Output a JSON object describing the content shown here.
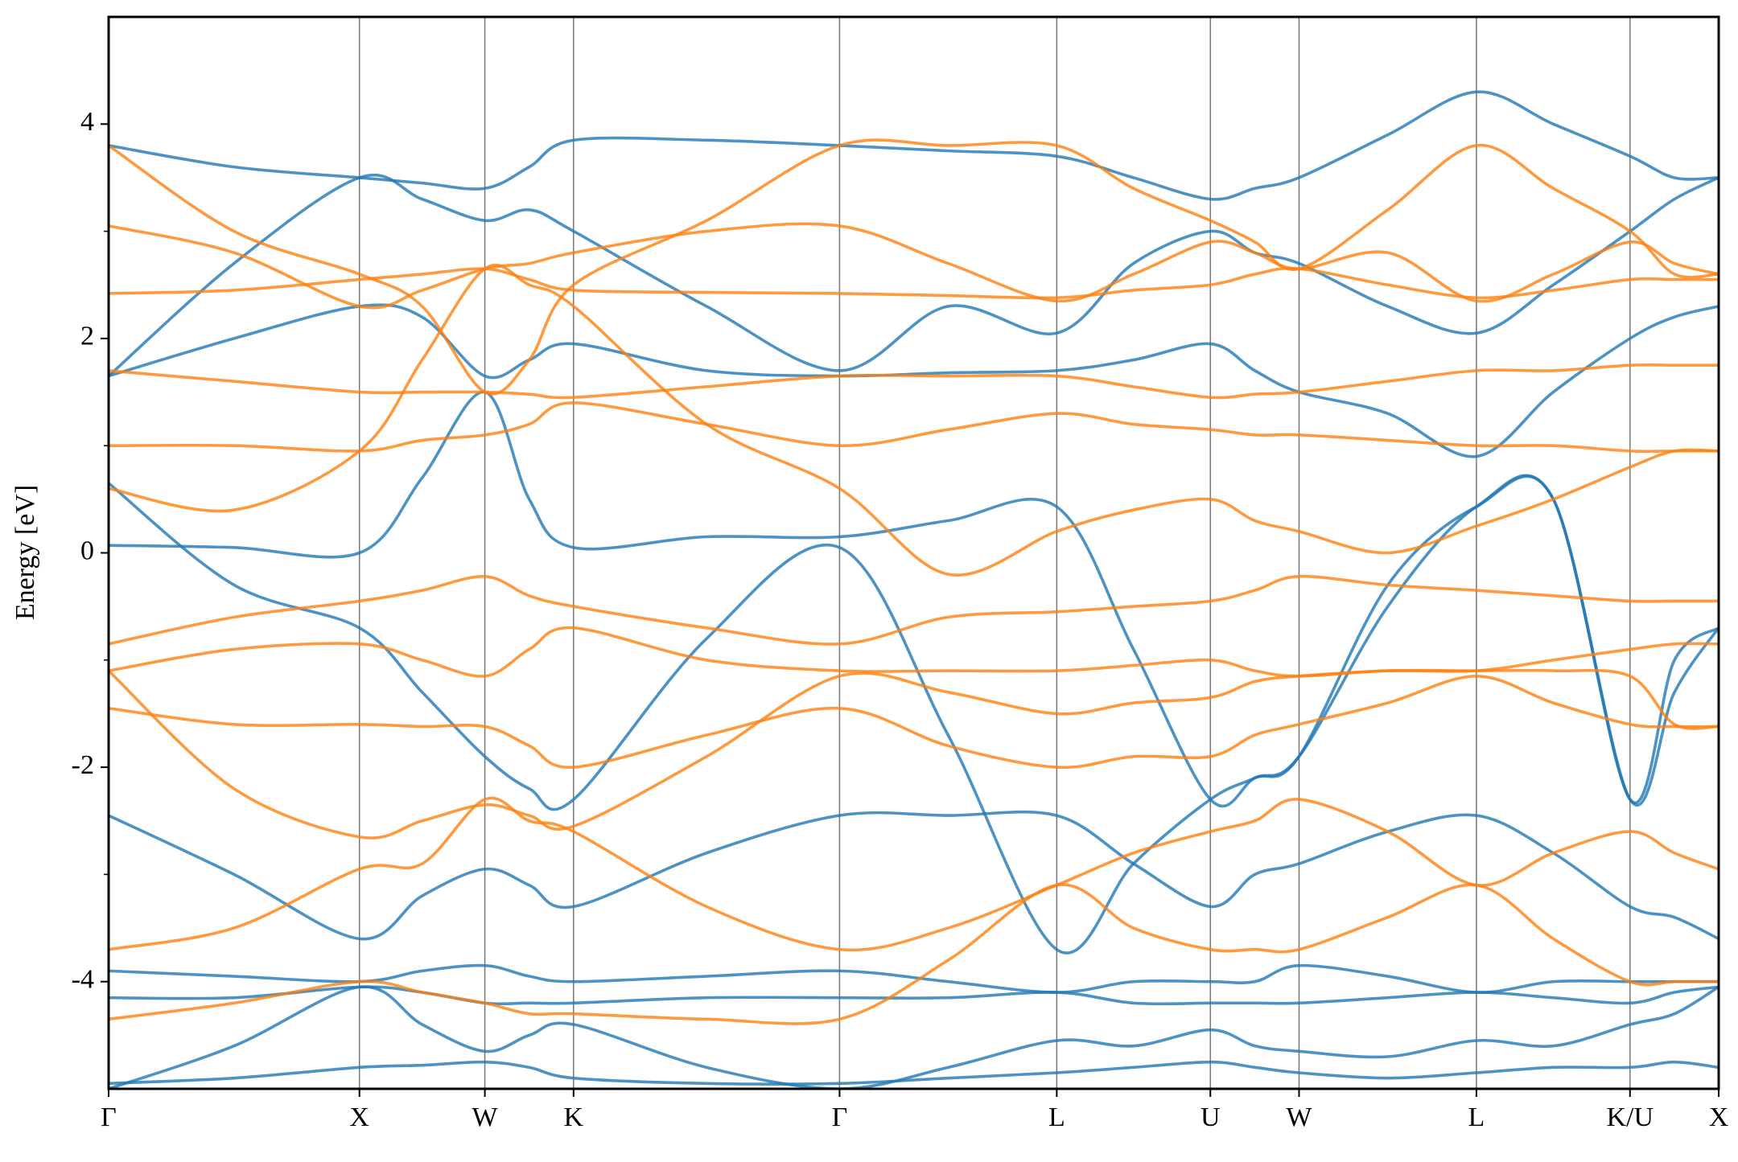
{
  "chart_data": {
    "type": "line",
    "y_label": "Energy [eV]",
    "xlim": [
      0,
      6.4193
    ],
    "ylim": [
      -5,
      5
    ],
    "yticks": [
      -4,
      -2,
      0,
      2,
      4
    ],
    "yminor_ticks": [
      -3,
      -1,
      1,
      3
    ],
    "xticks": [
      {
        "value": 0,
        "label": "Γ"
      },
      {
        "value": 1,
        "label": "X"
      },
      {
        "value": 1.5,
        "label": "W"
      },
      {
        "value": 1.8536,
        "label": "K"
      },
      {
        "value": 2.9142,
        "label": "Γ"
      },
      {
        "value": 3.7802,
        "label": "L"
      },
      {
        "value": 4.3926,
        "label": "U"
      },
      {
        "value": 4.7462,
        "label": "W"
      },
      {
        "value": 5.4533,
        "label": "L"
      },
      {
        "value": 6.0657,
        "label": "K/U"
      },
      {
        "value": 6.4193,
        "label": "X"
      }
    ],
    "vertical_lines": true,
    "x": [
      0,
      0.5,
      1,
      1.25,
      1.5,
      1.677,
      1.854,
      2.384,
      2.914,
      3.347,
      3.78,
      4.086,
      4.393,
      4.57,
      4.746,
      5.1,
      5.453,
      5.76,
      6.066,
      6.243,
      6.419
    ],
    "series": [
      {
        "color": "#1f77b4",
        "values": [
          0.07,
          0.05,
          0.0,
          0.7,
          1.5,
          0.5,
          0.05,
          0.15,
          0.15,
          0.3,
          0.43,
          -0.9,
          -2.3,
          -2.1,
          -1.9,
          -0.3,
          0.43,
          0.5,
          -2.3,
          -1.0,
          -0.7
        ]
      },
      {
        "color": "#1f77b4",
        "values": [
          -2.45,
          -3.0,
          -3.6,
          -3.2,
          -2.95,
          -3.1,
          -3.3,
          -2.8,
          -2.45,
          -2.45,
          -2.45,
          -2.9,
          -3.3,
          -3.0,
          -2.9,
          -2.6,
          -2.45,
          -2.8,
          -3.3,
          -3.4,
          -3.6
        ]
      },
      {
        "color": "#1f77b4",
        "values": [
          -4.15,
          -4.15,
          -4.05,
          -4.1,
          -4.2,
          -4.2,
          -4.2,
          -4.15,
          -4.15,
          -4.15,
          -4.1,
          -4.2,
          -4.2,
          -4.2,
          -4.2,
          -4.15,
          -4.1,
          -4.15,
          -4.2,
          -4.1,
          -4.05
        ]
      },
      {
        "color": "#1f77b4",
        "values": [
          -3.9,
          -3.95,
          -4.0,
          -3.9,
          -3.85,
          -3.95,
          -4.0,
          -3.95,
          -3.9,
          -4.0,
          -4.1,
          -4.0,
          -4.0,
          -4.0,
          -3.85,
          -3.95,
          -4.1,
          -4.0,
          -4.0,
          -4.0,
          -4.0
        ]
      },
      {
        "color": "#1f77b4",
        "values": [
          -5.0,
          -4.6,
          -4.05,
          -4.4,
          -4.65,
          -4.5,
          -4.4,
          -4.8,
          -5.0,
          -4.8,
          -4.55,
          -4.6,
          -4.45,
          -4.6,
          -4.65,
          -4.7,
          -4.55,
          -4.6,
          -4.4,
          -4.3,
          -4.05
        ]
      },
      {
        "color": "#1f77b4",
        "values": [
          1.65,
          2.0,
          2.3,
          2.2,
          1.65,
          1.8,
          1.95,
          1.7,
          1.65,
          1.68,
          1.7,
          1.8,
          1.95,
          1.7,
          1.5,
          1.3,
          0.9,
          1.5,
          2.0,
          2.2,
          2.3
        ]
      },
      {
        "color": "#1f77b4",
        "values": [
          3.8,
          3.6,
          3.5,
          3.45,
          3.4,
          3.6,
          3.85,
          3.85,
          3.8,
          3.75,
          3.7,
          3.5,
          3.3,
          3.4,
          3.5,
          3.9,
          4.3,
          4.0,
          3.7,
          3.5,
          3.5
        ]
      },
      {
        "color": "#1f77b4",
        "values": [
          0.65,
          -0.3,
          -0.7,
          -1.3,
          -1.9,
          -2.2,
          -2.3,
          -0.8,
          0.05,
          -1.7,
          -3.7,
          -2.9,
          -2.3,
          -2.1,
          -1.9,
          -0.5,
          0.43,
          0.5,
          -2.3,
          -1.3,
          -0.7
        ]
      },
      {
        "color": "#1f77b4",
        "values": [
          1.65,
          2.7,
          3.5,
          3.3,
          3.1,
          3.2,
          3.0,
          2.3,
          1.7,
          2.3,
          2.05,
          2.7,
          3.0,
          2.8,
          2.7,
          2.3,
          2.05,
          2.5,
          3.0,
          3.3,
          3.5
        ]
      },
      {
        "color": "#1f77b4",
        "values": [
          -4.95,
          -4.9,
          -4.8,
          -4.78,
          -4.75,
          -4.8,
          -4.9,
          -4.95,
          -4.95,
          -4.9,
          -4.85,
          -4.8,
          -4.75,
          -4.8,
          -4.85,
          -4.9,
          -4.85,
          -4.8,
          -4.8,
          -4.75,
          -4.8
        ]
      },
      {
        "color": "#ff7f0e",
        "values": [
          -1.1,
          -0.9,
          -0.85,
          -1.0,
          -1.15,
          -0.9,
          -0.7,
          -1.0,
          -1.1,
          -1.1,
          -1.1,
          -1.05,
          -1.0,
          -1.1,
          -1.15,
          -1.1,
          -1.1,
          -1.0,
          -0.9,
          -0.85,
          -0.85
        ]
      },
      {
        "color": "#ff7f0e",
        "values": [
          -0.85,
          -0.6,
          -0.45,
          -0.35,
          -0.22,
          -0.4,
          -0.5,
          -0.7,
          -0.85,
          -0.6,
          -0.55,
          -0.5,
          -0.45,
          -0.35,
          -0.22,
          -0.3,
          -0.35,
          -0.4,
          -0.45,
          -0.45,
          -0.45
        ]
      },
      {
        "color": "#ff7f0e",
        "values": [
          -1.45,
          -1.6,
          -1.6,
          -1.62,
          -1.62,
          -1.8,
          -2.0,
          -1.7,
          -1.45,
          -1.8,
          -2.0,
          -1.9,
          -1.9,
          -1.7,
          -1.6,
          -1.4,
          -1.15,
          -1.4,
          -1.6,
          -1.62,
          -1.62
        ]
      },
      {
        "color": "#ff7f0e",
        "values": [
          2.42,
          2.45,
          2.55,
          2.6,
          2.65,
          2.55,
          2.45,
          2.43,
          2.42,
          2.4,
          2.38,
          2.45,
          2.5,
          2.6,
          2.65,
          2.5,
          2.38,
          2.45,
          2.55,
          2.55,
          2.55
        ]
      },
      {
        "color": "#ff7f0e",
        "values": [
          1.0,
          1.0,
          0.95,
          1.05,
          1.1,
          1.2,
          1.4,
          1.2,
          1.0,
          1.15,
          1.3,
          1.2,
          1.15,
          1.1,
          1.1,
          1.05,
          1.0,
          1.0,
          0.95,
          0.95,
          0.95
        ]
      },
      {
        "color": "#ff7f0e",
        "values": [
          1.7,
          1.6,
          1.5,
          1.5,
          1.5,
          1.48,
          1.45,
          1.55,
          1.65,
          1.65,
          1.65,
          1.55,
          1.45,
          1.48,
          1.5,
          1.6,
          1.7,
          1.7,
          1.75,
          1.75,
          1.75
        ]
      },
      {
        "color": "#ff7f0e",
        "values": [
          3.8,
          3.0,
          2.6,
          2.3,
          1.5,
          1.8,
          2.5,
          3.1,
          3.8,
          3.8,
          3.8,
          3.4,
          3.1,
          2.9,
          2.65,
          3.2,
          3.8,
          3.4,
          3.0,
          2.6,
          2.6
        ]
      },
      {
        "color": "#ff7f0e",
        "values": [
          -3.7,
          -3.5,
          -2.95,
          -2.9,
          -2.3,
          -2.5,
          -2.6,
          -3.3,
          -3.7,
          -3.5,
          -3.1,
          -2.8,
          -2.6,
          -2.5,
          -2.3,
          -2.6,
          -3.1,
          -2.8,
          -2.6,
          -2.8,
          -2.95
        ]
      },
      {
        "color": "#ff7f0e",
        "values": [
          -4.35,
          -4.2,
          -4.0,
          -4.1,
          -4.2,
          -4.3,
          -4.3,
          -4.35,
          -4.35,
          -3.8,
          -3.1,
          -3.5,
          -3.7,
          -3.7,
          -3.7,
          -3.4,
          -3.1,
          -3.6,
          -4.0,
          -4.0,
          -4.0
        ]
      },
      {
        "color": "#ff7f0e",
        "values": [
          -1.1,
          -2.2,
          -2.65,
          -2.5,
          -2.35,
          -2.45,
          -2.55,
          -1.9,
          -1.15,
          -1.3,
          -1.5,
          -1.4,
          -1.35,
          -1.2,
          -1.15,
          -1.1,
          -1.1,
          -1.1,
          -1.15,
          -1.6,
          -1.62
        ]
      },
      {
        "color": "#ff7f0e",
        "values": [
          0.6,
          0.4,
          0.95,
          1.8,
          2.65,
          2.5,
          2.3,
          1.2,
          0.6,
          -0.2,
          0.2,
          0.4,
          0.5,
          0.3,
          0.2,
          0.0,
          0.25,
          0.5,
          0.8,
          0.95,
          0.95
        ]
      },
      {
        "color": "#ff7f0e",
        "values": [
          3.05,
          2.8,
          2.3,
          2.45,
          2.65,
          2.7,
          2.8,
          3.0,
          3.05,
          2.7,
          2.35,
          2.6,
          2.9,
          2.8,
          2.65,
          2.8,
          2.35,
          2.6,
          2.9,
          2.7,
          2.6
        ]
      }
    ]
  }
}
